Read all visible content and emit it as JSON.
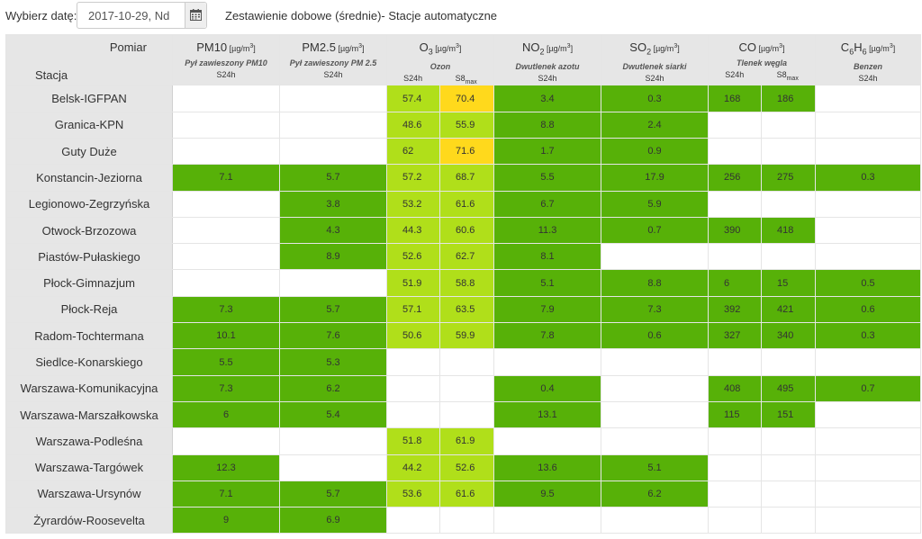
{
  "header": {
    "date_label": "Wybierz datę:",
    "date_value": "2017-10-29, Nd",
    "calendar_icon": "calendar-icon",
    "title": "Zestawienie dobowe (średnie)- Stacje automatyczne"
  },
  "table": {
    "corner_top": "Pomiar",
    "corner_bottom": "Stacja",
    "pollutants": [
      {
        "name": "PM10",
        "sub": "",
        "unit": "[µg/m³]",
        "desc": "Pył zawieszony PM10",
        "cols": [
          "S24h"
        ]
      },
      {
        "name": "PM2.5",
        "sub": "",
        "unit": "[µg/m³]",
        "desc": "Pył zawieszony PM 2.5",
        "cols": [
          "S24h"
        ]
      },
      {
        "name": "O",
        "sub": "3",
        "unit": "[µg/m³]",
        "desc": "Ozon",
        "cols": [
          "S24h",
          "S8max"
        ]
      },
      {
        "name": "NO",
        "sub": "2",
        "unit": "[µg/m³]",
        "desc": "Dwutlenek azotu",
        "cols": [
          "S24h"
        ]
      },
      {
        "name": "SO",
        "sub": "2",
        "unit": "[µg/m³]",
        "desc": "Dwutlenek siarki",
        "cols": [
          "S24h"
        ]
      },
      {
        "name": "CO",
        "sub": "",
        "unit": "[µg/m³]",
        "desc": "Tlenek węgla",
        "cols": [
          "S24h",
          "S8max"
        ]
      },
      {
        "name": "C6H6",
        "sub": "",
        "unit": "[µg/m³]",
        "desc": "Benzen",
        "cols": [
          "S24h"
        ]
      }
    ],
    "colors": {
      "good": "#57b108",
      "moderate": "#b0df1a",
      "elevated": "#ffd91c"
    },
    "rows": [
      {
        "station": "Belsk-IGFPAN",
        "cells": [
          [
            "",
            ""
          ],
          [
            "",
            ""
          ],
          [
            "57.4",
            "m"
          ],
          [
            "70.4",
            "y"
          ],
          [
            "3.4",
            "g"
          ],
          [
            "0.3",
            "g"
          ],
          [
            "168",
            "g"
          ],
          [
            "186",
            "g"
          ],
          [
            "",
            ""
          ]
        ]
      },
      {
        "station": "Granica-KPN",
        "cells": [
          [
            "",
            ""
          ],
          [
            "",
            ""
          ],
          [
            "48.6",
            "m"
          ],
          [
            "55.9",
            "m"
          ],
          [
            "8.8",
            "g"
          ],
          [
            "2.4",
            "g"
          ],
          [
            "",
            ""
          ],
          [
            "",
            ""
          ],
          [
            "",
            ""
          ]
        ]
      },
      {
        "station": "Guty Duże",
        "cells": [
          [
            "",
            ""
          ],
          [
            "",
            ""
          ],
          [
            "62",
            "m"
          ],
          [
            "71.6",
            "y"
          ],
          [
            "1.7",
            "g"
          ],
          [
            "0.9",
            "g"
          ],
          [
            "",
            ""
          ],
          [
            "",
            ""
          ],
          [
            "",
            ""
          ]
        ]
      },
      {
        "station": "Konstancin-Jeziorna",
        "cells": [
          [
            "7.1",
            "g"
          ],
          [
            "5.7",
            "g"
          ],
          [
            "57.2",
            "m"
          ],
          [
            "68.7",
            "m"
          ],
          [
            "5.5",
            "g"
          ],
          [
            "17.9",
            "g"
          ],
          [
            "256",
            "g"
          ],
          [
            "275",
            "g"
          ],
          [
            "0.3",
            "g"
          ]
        ]
      },
      {
        "station": "Legionowo-Zegrzyńska",
        "cells": [
          [
            "",
            ""
          ],
          [
            "3.8",
            "g"
          ],
          [
            "53.2",
            "m"
          ],
          [
            "61.6",
            "m"
          ],
          [
            "6.7",
            "g"
          ],
          [
            "5.9",
            "g"
          ],
          [
            "",
            ""
          ],
          [
            "",
            ""
          ],
          [
            "",
            ""
          ]
        ]
      },
      {
        "station": "Otwock-Brzozowa",
        "cells": [
          [
            "",
            ""
          ],
          [
            "4.3",
            "g"
          ],
          [
            "44.3",
            "m"
          ],
          [
            "60.6",
            "m"
          ],
          [
            "11.3",
            "g"
          ],
          [
            "0.7",
            "g"
          ],
          [
            "390",
            "g"
          ],
          [
            "418",
            "g"
          ],
          [
            "",
            ""
          ]
        ]
      },
      {
        "station": "Piastów-Pułaskiego",
        "cells": [
          [
            "",
            ""
          ],
          [
            "8.9",
            "g"
          ],
          [
            "52.6",
            "m"
          ],
          [
            "62.7",
            "m"
          ],
          [
            "8.1",
            "g"
          ],
          [
            "",
            ""
          ],
          [
            "",
            ""
          ],
          [
            "",
            ""
          ],
          [
            "",
            ""
          ]
        ]
      },
      {
        "station": "Płock-Gimnazjum",
        "cells": [
          [
            "",
            ""
          ],
          [
            "",
            ""
          ],
          [
            "51.9",
            "m"
          ],
          [
            "58.8",
            "m"
          ],
          [
            "5.1",
            "g"
          ],
          [
            "8.8",
            "g"
          ],
          [
            "6",
            "g"
          ],
          [
            "15",
            "g"
          ],
          [
            "0.5",
            "g"
          ]
        ]
      },
      {
        "station": "Płock-Reja",
        "cells": [
          [
            "7.3",
            "g"
          ],
          [
            "5.7",
            "g"
          ],
          [
            "57.1",
            "m"
          ],
          [
            "63.5",
            "m"
          ],
          [
            "7.9",
            "g"
          ],
          [
            "7.3",
            "g"
          ],
          [
            "392",
            "g"
          ],
          [
            "421",
            "g"
          ],
          [
            "0.6",
            "g"
          ]
        ]
      },
      {
        "station": "Radom-Tochtermana",
        "cells": [
          [
            "10.1",
            "g"
          ],
          [
            "7.6",
            "g"
          ],
          [
            "50.6",
            "m"
          ],
          [
            "59.9",
            "m"
          ],
          [
            "7.8",
            "g"
          ],
          [
            "0.6",
            "g"
          ],
          [
            "327",
            "g"
          ],
          [
            "340",
            "g"
          ],
          [
            "0.3",
            "g"
          ]
        ]
      },
      {
        "station": "Siedlce-Konarskiego",
        "cells": [
          [
            "5.5",
            "g"
          ],
          [
            "5.3",
            "g"
          ],
          [
            "",
            ""
          ],
          [
            "",
            ""
          ],
          [
            "",
            ""
          ],
          [
            "",
            ""
          ],
          [
            "",
            ""
          ],
          [
            "",
            ""
          ],
          [
            "",
            ""
          ]
        ]
      },
      {
        "station": "Warszawa-Komunikacyjna",
        "cells": [
          [
            "7.3",
            "g"
          ],
          [
            "6.2",
            "g"
          ],
          [
            "",
            ""
          ],
          [
            "",
            ""
          ],
          [
            "0.4",
            "g"
          ],
          [
            "",
            ""
          ],
          [
            "408",
            "g"
          ],
          [
            "495",
            "g"
          ],
          [
            "0.7",
            "g"
          ]
        ]
      },
      {
        "station": "Warszawa-Marszałkowska",
        "cells": [
          [
            "6",
            "g"
          ],
          [
            "5.4",
            "g"
          ],
          [
            "",
            ""
          ],
          [
            "",
            ""
          ],
          [
            "13.1",
            "g"
          ],
          [
            "",
            ""
          ],
          [
            "115",
            "g"
          ],
          [
            "151",
            "g"
          ],
          [
            "",
            ""
          ]
        ]
      },
      {
        "station": "Warszawa-Podleśna",
        "cells": [
          [
            "",
            ""
          ],
          [
            "",
            ""
          ],
          [
            "51.8",
            "m"
          ],
          [
            "61.9",
            "m"
          ],
          [
            "",
            ""
          ],
          [
            "",
            ""
          ],
          [
            "",
            ""
          ],
          [
            "",
            ""
          ],
          [
            "",
            ""
          ]
        ]
      },
      {
        "station": "Warszawa-Targówek",
        "cells": [
          [
            "12.3",
            "g"
          ],
          [
            "",
            ""
          ],
          [
            "44.2",
            "m"
          ],
          [
            "52.6",
            "m"
          ],
          [
            "13.6",
            "g"
          ],
          [
            "5.1",
            "g"
          ],
          [
            "",
            ""
          ],
          [
            "",
            ""
          ],
          [
            "",
            ""
          ]
        ]
      },
      {
        "station": "Warszawa-Ursynów",
        "cells": [
          [
            "7.1",
            "g"
          ],
          [
            "5.7",
            "g"
          ],
          [
            "53.6",
            "m"
          ],
          [
            "61.6",
            "m"
          ],
          [
            "9.5",
            "g"
          ],
          [
            "6.2",
            "g"
          ],
          [
            "",
            ""
          ],
          [
            "",
            ""
          ],
          [
            "",
            ""
          ]
        ]
      },
      {
        "station": "Żyrardów-Roosevelta",
        "cells": [
          [
            "9",
            "g"
          ],
          [
            "6.9",
            "g"
          ],
          [
            "",
            ""
          ],
          [
            "",
            ""
          ],
          [
            "",
            ""
          ],
          [
            "",
            ""
          ],
          [
            "",
            ""
          ],
          [
            "",
            ""
          ],
          [
            "",
            ""
          ]
        ]
      }
    ]
  }
}
